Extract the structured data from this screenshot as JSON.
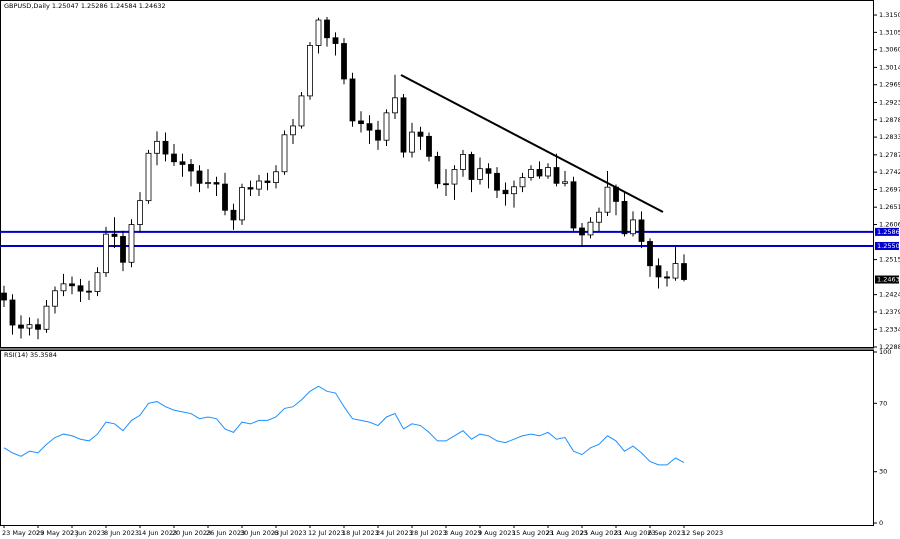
{
  "chart_data": {
    "type": "candlestick",
    "title": "GBPUSD,Daily 1.25047 1.25286 1.24584 1.24632",
    "categories": [
      "23 May 2023",
      null,
      null,
      null,
      "29 May 2023",
      null,
      null,
      null,
      "2 Jun 2023",
      null,
      null,
      null,
      "8 Jun 2023",
      null,
      null,
      null,
      "14 Jun 2023",
      null,
      null,
      null,
      "20 Jun 2023",
      null,
      null,
      null,
      "26 Jun 2023",
      null,
      null,
      null,
      "30 Jun 2023",
      null,
      null,
      null,
      "6 Jul 2023",
      null,
      null,
      null,
      "12 Jul 2023",
      null,
      null,
      null,
      "18 Jul 2023",
      null,
      null,
      null,
      "24 Jul 2023",
      null,
      null,
      null,
      "28 Jul 2023",
      null,
      null,
      null,
      "3 Aug 2023",
      null,
      null,
      null,
      "9 Aug 2023",
      null,
      null,
      null,
      "15 Aug 2023",
      null,
      null,
      null,
      "21 Aug 2023",
      null,
      null,
      null,
      "25 Aug 2023",
      null,
      null,
      null,
      "31 Aug 2023",
      null,
      null,
      null,
      "6 Sep 2023",
      null,
      null,
      null,
      "12 Sep 2023"
    ],
    "open": [
      1.2428,
      1.241,
      1.2345,
      1.2337,
      1.2346,
      1.2334,
      1.2394,
      1.2434,
      1.2452,
      1.2447,
      1.2433,
      1.2432,
      1.2481,
      1.2581,
      1.2575,
      1.2508,
      1.2606,
      1.2668,
      1.2791,
      1.2822,
      1.2789,
      1.2769,
      1.2762,
      1.2745,
      1.2713,
      1.2715,
      1.2711,
      1.2643,
      1.2618,
      1.2702,
      1.2698,
      1.2719,
      1.2715,
      1.2743,
      1.2839,
      1.2862,
      1.294,
      1.3071,
      1.3137,
      1.3091,
      1.3076,
      1.2984,
      1.2875,
      1.2868,
      1.2851,
      1.2825,
      1.2896,
      1.2935,
      1.2794,
      1.2846,
      1.2835,
      1.2783,
      1.2712,
      1.2711,
      1.2749,
      1.2788,
      1.2723,
      1.2751,
      1.2739,
      1.2695,
      1.2686,
      1.2704,
      1.2728,
      1.2749,
      1.2732,
      1.2754,
      1.2713,
      1.2717,
      1.2597,
      1.2579,
      1.2612,
      1.2638,
      1.2703,
      1.2666,
      1.2582,
      1.2618,
      1.2562,
      1.2499,
      1.247,
      1.2467,
      1.25047
    ],
    "high": [
      1.2447,
      1.2425,
      1.237,
      1.2365,
      1.2362,
      1.241,
      1.2445,
      1.2478,
      1.2471,
      1.2465,
      1.246,
      1.2495,
      1.26,
      1.2625,
      1.259,
      1.262,
      1.269,
      1.28,
      1.2848,
      1.2845,
      1.2815,
      1.279,
      1.2776,
      1.276,
      1.275,
      1.273,
      1.274,
      1.266,
      1.2712,
      1.272,
      1.2735,
      1.274,
      1.276,
      1.285,
      1.288,
      1.295,
      1.308,
      1.3143,
      1.3145,
      1.3105,
      1.309,
      1.3,
      1.29,
      1.289,
      1.2875,
      1.2905,
      1.2995,
      1.2945,
      1.287,
      1.286,
      1.2845,
      1.2795,
      1.275,
      1.276,
      1.28,
      1.2795,
      1.278,
      1.2765,
      1.2755,
      1.2715,
      1.272,
      1.274,
      1.276,
      1.277,
      1.2765,
      1.279,
      1.2745,
      1.273,
      1.261,
      1.2625,
      1.265,
      1.2745,
      1.271,
      1.269,
      1.264,
      1.264,
      1.257,
      1.2518,
      1.2485,
      1.2548,
      1.25286
    ],
    "low": [
      1.2392,
      1.232,
      1.231,
      1.2318,
      1.2308,
      1.2325,
      1.2375,
      1.242,
      1.2425,
      1.2405,
      1.241,
      1.242,
      1.247,
      1.2545,
      1.2485,
      1.2495,
      1.2585,
      1.266,
      1.276,
      1.277,
      1.2758,
      1.273,
      1.2705,
      1.269,
      1.27,
      1.268,
      1.263,
      1.2592,
      1.2605,
      1.268,
      1.268,
      1.2695,
      1.27,
      1.2735,
      1.2815,
      1.2855,
      1.293,
      1.305,
      1.3068,
      1.3045,
      1.297,
      1.286,
      1.2845,
      1.2815,
      1.28,
      1.281,
      1.288,
      1.278,
      1.278,
      1.28,
      1.277,
      1.27,
      1.268,
      1.267,
      1.273,
      1.269,
      1.271,
      1.27,
      1.2675,
      1.2655,
      1.265,
      1.269,
      1.272,
      1.2725,
      1.2725,
      1.2705,
      1.2705,
      1.259,
      1.2548,
      1.257,
      1.2588,
      1.2628,
      1.263,
      1.2575,
      1.2575,
      1.2545,
      1.247,
      1.244,
      1.2445,
      1.246,
      1.24584
    ],
    "close": [
      1.241,
      1.2345,
      1.2337,
      1.2346,
      1.2334,
      1.2394,
      1.2434,
      1.2452,
      1.2447,
      1.2433,
      1.2432,
      1.2481,
      1.2581,
      1.2575,
      1.2508,
      1.2606,
      1.2668,
      1.2791,
      1.2822,
      1.2789,
      1.2769,
      1.2762,
      1.2745,
      1.2713,
      1.2715,
      1.2711,
      1.2643,
      1.2618,
      1.2702,
      1.2698,
      1.2719,
      1.2715,
      1.2743,
      1.2839,
      1.2862,
      1.294,
      1.3071,
      1.3137,
      1.3091,
      1.3076,
      1.2984,
      1.2875,
      1.2868,
      1.2851,
      1.2825,
      1.2896,
      1.2935,
      1.2794,
      1.2846,
      1.2835,
      1.2783,
      1.2712,
      1.2711,
      1.2749,
      1.2788,
      1.2723,
      1.2751,
      1.2739,
      1.2695,
      1.2686,
      1.2704,
      1.2728,
      1.2749,
      1.2732,
      1.2754,
      1.2713,
      1.2717,
      1.2597,
      1.2579,
      1.2612,
      1.2638,
      1.2703,
      1.2666,
      1.2582,
      1.2618,
      1.2562,
      1.2499,
      1.247,
      1.2467,
      1.25047,
      1.24632
    ],
    "ylim": [
      1.2288,
      1.3189
    ],
    "yticks": [
      {
        "value": 1.315,
        "label": "1.31500"
      },
      {
        "value": 1.3105,
        "label": "1.31050"
      },
      {
        "value": 1.306,
        "label": "1.30600"
      },
      {
        "value": 1.3014,
        "label": "1.30140"
      },
      {
        "value": 1.2969,
        "label": "1.29690"
      },
      {
        "value": 1.2923,
        "label": "1.29230"
      },
      {
        "value": 1.2878,
        "label": "1.28780"
      },
      {
        "value": 1.2833,
        "label": "1.28330"
      },
      {
        "value": 1.2787,
        "label": "1.27870"
      },
      {
        "value": 1.2742,
        "label": "1.27420"
      },
      {
        "value": 1.2697,
        "label": "1.26970"
      },
      {
        "value": 1.2651,
        "label": "1.26510"
      },
      {
        "value": 1.2606,
        "label": "1.26060"
      },
      {
        "value": 1.2515,
        "label": "1.25150"
      },
      {
        "value": 1.2424,
        "label": "1.24240"
      },
      {
        "value": 1.2379,
        "label": "1.23790"
      },
      {
        "value": 1.2334,
        "label": "1.23340"
      },
      {
        "value": 1.2288,
        "label": "1.22880"
      }
    ],
    "hlines": [
      {
        "value": 1.25869,
        "color": "#0000cc"
      },
      {
        "value": 1.25503,
        "color": "#0000cc"
      }
    ],
    "bull_color": "#ffffff",
    "bear_color": "#000000",
    "rsi": {
      "title": "RSI(14) 35.3584",
      "color": "#1e90ff",
      "values": [
        44,
        41,
        39,
        42,
        41,
        46,
        50,
        52,
        51,
        49,
        48,
        52,
        59,
        58,
        54,
        60,
        63,
        70,
        71,
        68,
        66,
        65,
        64,
        61,
        62,
        61,
        55,
        53,
        59,
        58,
        60,
        60,
        62,
        67,
        68,
        72,
        77,
        80,
        77,
        76,
        68,
        61,
        60,
        59,
        57,
        62,
        64,
        55,
        58,
        57,
        53,
        48,
        48,
        51,
        54,
        49,
        52,
        51,
        48,
        47,
        49,
        51,
        52,
        51,
        53,
        49,
        50,
        42,
        40,
        44,
        46,
        51,
        48,
        42,
        45,
        41,
        36,
        34,
        34,
        38,
        35.3584
      ],
      "ylim": [
        0,
        100
      ],
      "yticks": [
        100,
        70,
        30,
        0
      ]
    }
  }
}
